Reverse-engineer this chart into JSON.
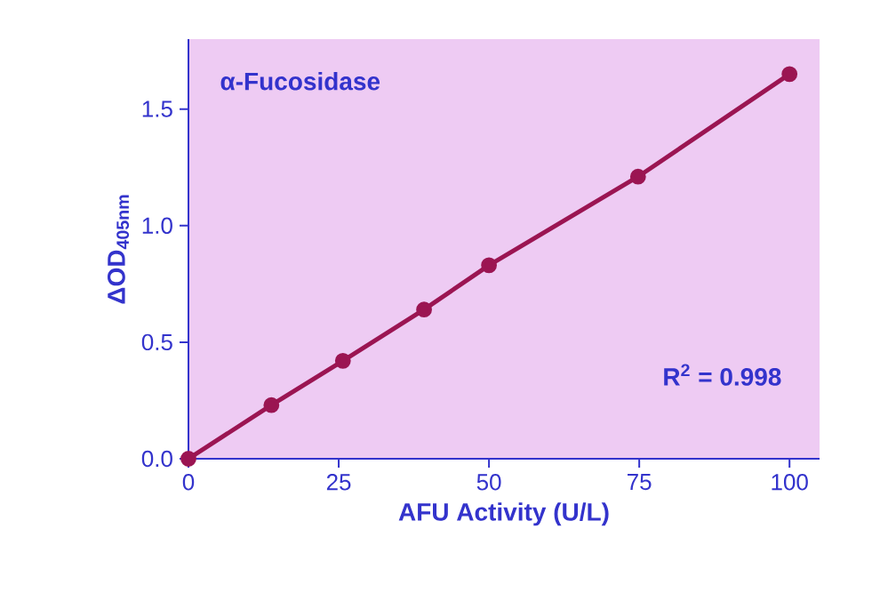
{
  "chart_data": {
    "type": "line",
    "xlabel": "AFU Activity (U/L)",
    "ylabel": "ΔOD$_{405nm}$",
    "annotations": [
      "α-Fucosidase",
      "R$^{2}$ = 0.998"
    ],
    "x": [
      0,
      13.8,
      25.7,
      39.2,
      50,
      74.8,
      100
    ],
    "series": [
      {
        "color": "#9b1552",
        "values": [
          0,
          0.23,
          0.42,
          0.64,
          0.83,
          1.21,
          1.65
        ]
      }
    ],
    "xlim": [
      0,
      105
    ],
    "ylim": [
      0,
      1.8
    ],
    "xticks": [
      0,
      25,
      50,
      75,
      100
    ],
    "yticks": [
      {
        "value": 0,
        "label": "0.0"
      },
      0.5,
      {
        "value": 1,
        "label": "1.0"
      },
      1.5
    ],
    "marker": "circle",
    "line_style": "solid"
  }
}
